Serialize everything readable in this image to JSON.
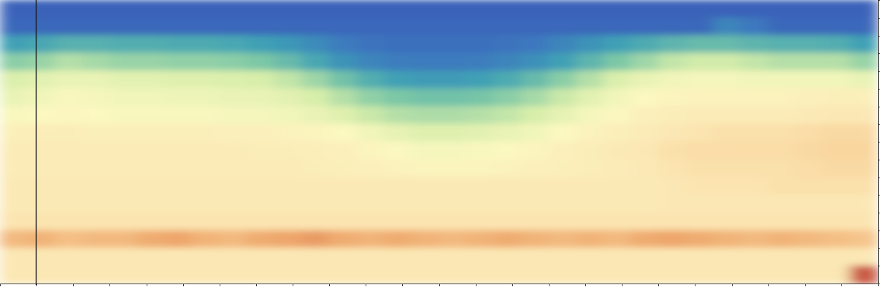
{
  "chart_data": {
    "type": "heatmap",
    "xlim": [
      0,
      24
    ],
    "xticks": [
      0,
      1,
      2,
      3,
      4,
      5,
      6,
      7,
      8,
      9,
      10,
      11,
      12,
      13,
      14,
      15,
      16,
      17,
      18,
      19,
      20,
      21,
      22,
      23,
      24
    ],
    "ylim": [
      0,
      16
    ],
    "yticks": [
      0,
      1,
      2,
      3,
      4,
      5,
      6,
      7,
      8,
      9,
      10,
      11,
      12,
      13,
      14,
      15,
      16
    ],
    "zlim": [
      0,
      1
    ],
    "tick_labels": false,
    "grid": false,
    "cells": [
      [
        0.02,
        0.02,
        0.02,
        0.02,
        0.02,
        0.02,
        0.02,
        0.02,
        0.02,
        0.02,
        0.02,
        0.02,
        0.02,
        0.02,
        0.02,
        0.02,
        0.02,
        0.02,
        0.02,
        0.02,
        0.02,
        0.02,
        0.02,
        0.02,
        0.02,
        0.02,
        0.02,
        0.02,
        0.02,
        0.02,
        0.02,
        0.02
      ],
      [
        0.05,
        0.05,
        0.05,
        0.05,
        0.05,
        0.05,
        0.05,
        0.05,
        0.05,
        0.05,
        0.05,
        0.05,
        0.05,
        0.05,
        0.05,
        0.05,
        0.05,
        0.05,
        0.05,
        0.05,
        0.05,
        0.05,
        0.05,
        0.05,
        0.05,
        0.05,
        0.2,
        0.15,
        0.05,
        0.05,
        0.05,
        0.05
      ],
      [
        0.3,
        0.32,
        0.35,
        0.35,
        0.34,
        0.34,
        0.33,
        0.33,
        0.32,
        0.3,
        0.27,
        0.22,
        0.16,
        0.12,
        0.1,
        0.1,
        0.1,
        0.1,
        0.12,
        0.15,
        0.2,
        0.25,
        0.3,
        0.33,
        0.36,
        0.38,
        0.38,
        0.36,
        0.35,
        0.35,
        0.34,
        0.3
      ],
      [
        0.44,
        0.46,
        0.5,
        0.48,
        0.46,
        0.46,
        0.45,
        0.45,
        0.44,
        0.42,
        0.38,
        0.32,
        0.25,
        0.2,
        0.17,
        0.16,
        0.16,
        0.17,
        0.2,
        0.24,
        0.3,
        0.36,
        0.42,
        0.47,
        0.52,
        0.54,
        0.54,
        0.52,
        0.5,
        0.5,
        0.5,
        0.46
      ],
      [
        0.56,
        0.58,
        0.6,
        0.6,
        0.58,
        0.58,
        0.57,
        0.57,
        0.56,
        0.55,
        0.52,
        0.47,
        0.4,
        0.34,
        0.3,
        0.28,
        0.28,
        0.3,
        0.33,
        0.38,
        0.44,
        0.5,
        0.56,
        0.6,
        0.62,
        0.63,
        0.63,
        0.62,
        0.62,
        0.62,
        0.62,
        0.6
      ],
      [
        0.6,
        0.62,
        0.64,
        0.63,
        0.62,
        0.62,
        0.61,
        0.61,
        0.6,
        0.6,
        0.58,
        0.55,
        0.5,
        0.45,
        0.42,
        0.4,
        0.4,
        0.41,
        0.44,
        0.48,
        0.53,
        0.58,
        0.62,
        0.65,
        0.67,
        0.68,
        0.68,
        0.68,
        0.68,
        0.69,
        0.7,
        0.7
      ],
      [
        0.64,
        0.65,
        0.66,
        0.65,
        0.64,
        0.64,
        0.64,
        0.64,
        0.63,
        0.63,
        0.62,
        0.6,
        0.57,
        0.53,
        0.5,
        0.49,
        0.49,
        0.5,
        0.52,
        0.55,
        0.59,
        0.63,
        0.66,
        0.69,
        0.71,
        0.72,
        0.72,
        0.72,
        0.72,
        0.73,
        0.74,
        0.74
      ],
      [
        0.7,
        0.71,
        0.71,
        0.7,
        0.7,
        0.7,
        0.7,
        0.7,
        0.69,
        0.69,
        0.68,
        0.67,
        0.65,
        0.62,
        0.59,
        0.57,
        0.57,
        0.58,
        0.6,
        0.62,
        0.65,
        0.68,
        0.7,
        0.72,
        0.74,
        0.75,
        0.76,
        0.76,
        0.76,
        0.77,
        0.78,
        0.78
      ],
      [
        0.72,
        0.72,
        0.72,
        0.72,
        0.72,
        0.72,
        0.72,
        0.72,
        0.72,
        0.71,
        0.71,
        0.7,
        0.69,
        0.67,
        0.65,
        0.63,
        0.63,
        0.64,
        0.65,
        0.67,
        0.69,
        0.71,
        0.73,
        0.74,
        0.76,
        0.77,
        0.77,
        0.77,
        0.77,
        0.78,
        0.79,
        0.79
      ],
      [
        0.72,
        0.72,
        0.72,
        0.72,
        0.72,
        0.72,
        0.72,
        0.72,
        0.72,
        0.72,
        0.72,
        0.71,
        0.7,
        0.69,
        0.68,
        0.67,
        0.67,
        0.67,
        0.68,
        0.69,
        0.7,
        0.71,
        0.72,
        0.73,
        0.75,
        0.76,
        0.76,
        0.76,
        0.76,
        0.77,
        0.78,
        0.78
      ],
      [
        0.73,
        0.73,
        0.73,
        0.73,
        0.73,
        0.73,
        0.73,
        0.73,
        0.73,
        0.73,
        0.73,
        0.73,
        0.73,
        0.73,
        0.73,
        0.73,
        0.73,
        0.73,
        0.73,
        0.73,
        0.73,
        0.73,
        0.73,
        0.73,
        0.74,
        0.75,
        0.75,
        0.75,
        0.76,
        0.76,
        0.76,
        0.76
      ],
      [
        0.73,
        0.73,
        0.73,
        0.73,
        0.73,
        0.73,
        0.73,
        0.73,
        0.73,
        0.73,
        0.73,
        0.73,
        0.73,
        0.73,
        0.73,
        0.73,
        0.73,
        0.73,
        0.73,
        0.73,
        0.73,
        0.73,
        0.73,
        0.73,
        0.74,
        0.74,
        0.74,
        0.74,
        0.74,
        0.74,
        0.74,
        0.74
      ],
      [
        0.75,
        0.75,
        0.75,
        0.75,
        0.75,
        0.75,
        0.75,
        0.75,
        0.75,
        0.75,
        0.75,
        0.75,
        0.75,
        0.75,
        0.75,
        0.75,
        0.75,
        0.75,
        0.75,
        0.75,
        0.75,
        0.75,
        0.75,
        0.75,
        0.75,
        0.75,
        0.75,
        0.75,
        0.75,
        0.75,
        0.75,
        0.75
      ],
      [
        0.84,
        0.85,
        0.83,
        0.84,
        0.84,
        0.86,
        0.87,
        0.85,
        0.84,
        0.86,
        0.87,
        0.88,
        0.86,
        0.85,
        0.86,
        0.85,
        0.84,
        0.85,
        0.86,
        0.85,
        0.84,
        0.85,
        0.84,
        0.86,
        0.87,
        0.86,
        0.85,
        0.84,
        0.85,
        0.84,
        0.83,
        0.82
      ],
      [
        0.74,
        0.74,
        0.74,
        0.74,
        0.74,
        0.74,
        0.74,
        0.74,
        0.74,
        0.74,
        0.74,
        0.74,
        0.74,
        0.74,
        0.74,
        0.74,
        0.74,
        0.74,
        0.74,
        0.74,
        0.74,
        0.74,
        0.74,
        0.74,
        0.74,
        0.74,
        0.74,
        0.74,
        0.74,
        0.74,
        0.74,
        0.74
      ],
      [
        0.74,
        0.74,
        0.74,
        0.74,
        0.74,
        0.74,
        0.74,
        0.74,
        0.74,
        0.74,
        0.74,
        0.74,
        0.74,
        0.74,
        0.74,
        0.74,
        0.74,
        0.74,
        0.74,
        0.74,
        0.74,
        0.74,
        0.74,
        0.74,
        0.74,
        0.74,
        0.74,
        0.74,
        0.74,
        0.74,
        0.74,
        0.95
      ]
    ]
  }
}
